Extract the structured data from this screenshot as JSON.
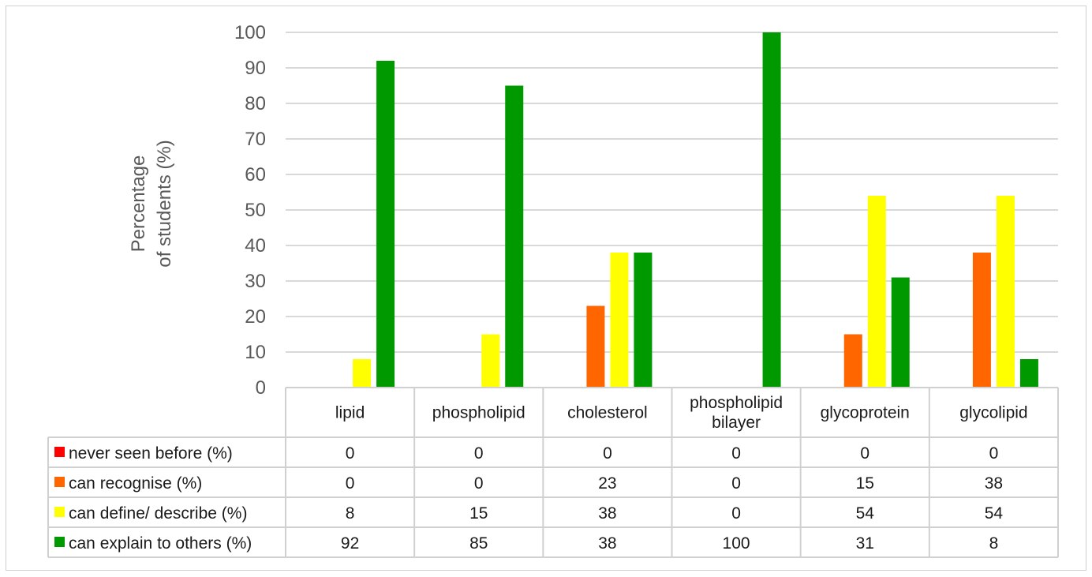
{
  "chart_data": {
    "type": "bar",
    "ylabel_lines": [
      "Percentage",
      "of students (%)"
    ],
    "ylim": [
      0,
      100
    ],
    "yticks": [
      "0",
      "10",
      "20",
      "30",
      "40",
      "50",
      "60",
      "70",
      "80",
      "90",
      "100"
    ],
    "grid": true,
    "categories": [
      [
        "lipid"
      ],
      [
        "phospholipid"
      ],
      [
        "cholesterol"
      ],
      [
        "phospholipid",
        "bilayer"
      ],
      [
        "glycoprotein"
      ],
      [
        "glycolipid"
      ]
    ],
    "series": [
      {
        "name": "never seen before (%)",
        "color": "#ff0000",
        "values": [
          0,
          0,
          0,
          0,
          0,
          0
        ],
        "labels": [
          "0",
          "0",
          "0",
          "0",
          "0",
          "0"
        ]
      },
      {
        "name": "can recognise (%)",
        "color": "#ff6600",
        "values": [
          0,
          0,
          23,
          0,
          15,
          38
        ],
        "labels": [
          "0",
          "0",
          "23",
          "0",
          "15",
          "38"
        ]
      },
      {
        "name": "can define/ describe (%)",
        "color": "#ffff00",
        "values": [
          8,
          15,
          38,
          0,
          54,
          54
        ],
        "labels": [
          "8",
          "15",
          "38",
          "0",
          "54",
          "54"
        ]
      },
      {
        "name": "can explain to others (%)",
        "color": "#009900",
        "values": [
          92,
          85,
          38,
          100,
          31,
          8
        ],
        "labels": [
          "92",
          "85",
          "38",
          "100",
          "31",
          "8"
        ]
      }
    ],
    "legend": "data-table"
  }
}
